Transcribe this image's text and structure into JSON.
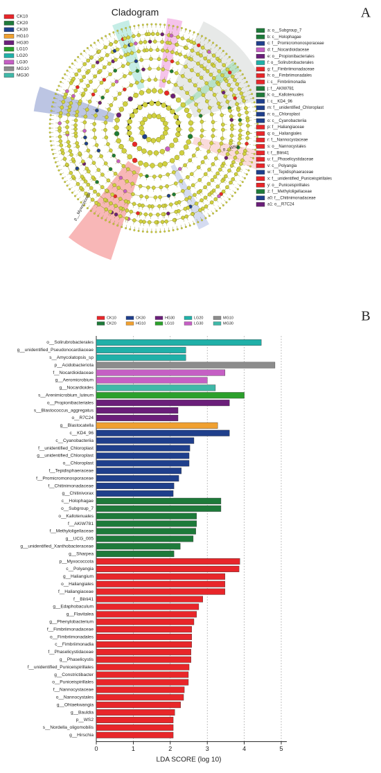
{
  "panel_labels": [
    "A",
    "B"
  ],
  "panel_a": {
    "title": "Cladogram",
    "legend_groups": [
      {
        "name": "CK10",
        "color": "#e8262a"
      },
      {
        "name": "CK20",
        "color": "#1e7a3a"
      },
      {
        "name": "CK30",
        "color": "#1f3f8c"
      },
      {
        "name": "HG10",
        "color": "#f0a030"
      },
      {
        "name": "HG30",
        "color": "#6b1f7a"
      },
      {
        "name": "LG10",
        "color": "#2ca02c"
      },
      {
        "name": "LG20",
        "color": "#20b0a8"
      },
      {
        "name": "LG30",
        "color": "#c55fc4"
      },
      {
        "name": "MG10",
        "color": "#8c8c8c"
      },
      {
        "name": "MG30",
        "color": "#3fb8a8"
      }
    ],
    "legend_taxa": [
      {
        "label": "a: o__Subgroup_7",
        "color": "#1e7a3a"
      },
      {
        "label": "b: c__Holophagae",
        "color": "#1e7a3a"
      },
      {
        "label": "c: f__Promicromonosporaceae",
        "color": "#1f3f8c"
      },
      {
        "label": "d: f__Nocardioidaceae",
        "color": "#c55fc4"
      },
      {
        "label": "e: o__Propionibacteriales",
        "color": "#6b1f7a"
      },
      {
        "label": "f: o__Solirubrobacterales",
        "color": "#20b0a8"
      },
      {
        "label": "g: f__Fimbriimonadaceae",
        "color": "#e8262a"
      },
      {
        "label": "h: o__Fimbriimonadales",
        "color": "#e8262a"
      },
      {
        "label": "i: c__Fimbriimonadia",
        "color": "#e8262a"
      },
      {
        "label": "j: f__AKIW781",
        "color": "#1e7a3a"
      },
      {
        "label": "k: o__Kallotenuales",
        "color": "#1e7a3a"
      },
      {
        "label": "l: c__KD4_96",
        "color": "#1f3f8c"
      },
      {
        "label": "m: f__unidentified_Chloroplast",
        "color": "#1f3f8c"
      },
      {
        "label": "n: o__Chloroplast",
        "color": "#1f3f8c"
      },
      {
        "label": "o: c__Cyanobacteriia",
        "color": "#1f3f8c"
      },
      {
        "label": "p: f__Haliangiaceae",
        "color": "#e8262a"
      },
      {
        "label": "q: o__Haliangiales",
        "color": "#e8262a"
      },
      {
        "label": "r: f__Nannocystaceae",
        "color": "#e8262a"
      },
      {
        "label": "s: o__Nannocystales",
        "color": "#e8262a"
      },
      {
        "label": "t: f__Bilrii41",
        "color": "#e8262a"
      },
      {
        "label": "u: f__Phaselicystidaceae",
        "color": "#e8262a"
      },
      {
        "label": "v: c__Polyangia",
        "color": "#e8262a"
      },
      {
        "label": "w: f__Tepidisphaeraceae",
        "color": "#1f3f8c"
      },
      {
        "label": "x: f__unidentified_Puniceispirillales",
        "color": "#e8262a"
      },
      {
        "label": "y: o__Puniceispirillales",
        "color": "#e8262a"
      },
      {
        "label": "z: f__Methyloligellaceae",
        "color": "#1e7a3a"
      },
      {
        "label": "a0: f__Chitinimonadaceae",
        "color": "#1f3f8c"
      },
      {
        "label": "a1: o__R7C24",
        "color": "#6b1f7a"
      }
    ],
    "clade_labels": [
      "p__WS2",
      "p__Myxococcota"
    ]
  },
  "chart_data": {
    "type": "bar",
    "orientation": "horizontal",
    "xlabel": "LDA SCORE (log 10)",
    "xlim": [
      0,
      5
    ],
    "xticks": [
      0,
      1,
      2,
      3,
      4,
      5
    ],
    "grid": true,
    "series": [
      {
        "name": "LG20",
        "color": "#20b0a8",
        "categories": [
          "o__Solirubrobacterales",
          "g__unidentified_Pseudonocardiaceae",
          "s__Amycolatopsis_sp"
        ],
        "values": [
          4.46,
          2.42,
          2.42
        ]
      },
      {
        "name": "MG10",
        "color": "#8c8c8c",
        "categories": [
          "p__Acidobacteriota"
        ],
        "values": [
          4.83
        ]
      },
      {
        "name": "LG30",
        "color": "#c55fc4",
        "categories": [
          "f__Nocardioidaceae",
          "g__Aeromicrobium"
        ],
        "values": [
          3.48,
          3.0
        ]
      },
      {
        "name": "MG30",
        "color": "#3fb8a8",
        "categories": [
          "g__Nocardioides"
        ],
        "values": [
          3.22
        ]
      },
      {
        "name": "LG10",
        "color": "#2ca02c",
        "categories": [
          "s__Arenimicrobium_luteum"
        ],
        "values": [
          4.0
        ]
      },
      {
        "name": "HG30",
        "color": "#6b1f7a",
        "categories": [
          "o__Propionibacteriales",
          "s__Blastococcus_aggregatus",
          "o__R7C24"
        ],
        "values": [
          3.6,
          2.21,
          2.21
        ]
      },
      {
        "name": "HG10",
        "color": "#f0a030",
        "categories": [
          "g__Blastocatella"
        ],
        "values": [
          3.28
        ]
      },
      {
        "name": "CK30",
        "color": "#1f3f8c",
        "categories": [
          "c__KD4_96",
          "c__Cyanobacteriia",
          "f__unidentified_Chloroplast",
          "g__unidentified_Chloroplast",
          "o__Chloroplast",
          "f__Tepidisphaeraceae",
          "f__Promicromonosporaceae",
          "f__Chitinimonadaceae",
          "g__Chitinivorax"
        ],
        "values": [
          3.6,
          2.64,
          2.53,
          2.51,
          2.51,
          2.3,
          2.23,
          2.1,
          2.08
        ]
      },
      {
        "name": "CK20",
        "color": "#1e7a3a",
        "categories": [
          "c__Holophagae",
          "o__Subgroup_7",
          "o__Kallotenuales",
          "f__AKIW781",
          "f__Methyloligellaceae",
          "g__UCG_005",
          "g__unidentified_Xanthobacteraceae",
          "g__Sharpea"
        ],
        "values": [
          3.37,
          3.37,
          2.71,
          2.71,
          2.69,
          2.62,
          2.27,
          2.1
        ]
      },
      {
        "name": "CK10",
        "color": "#e8262a",
        "categories": [
          "p__Myxococcota",
          "c__Polyangia",
          "g__Haliangium",
          "o__Haliangiales",
          "f__Haliangiaceae",
          "f__Bilrii41",
          "g__Edaphobaculum",
          "g__Flavitalea",
          "g__Phenylobacterium",
          "f__Fimbriimonadaceae",
          "o__Fimbriimonadales",
          "c__Fimbriimonadia",
          "f__Phaselicystidaceae",
          "g__Phaselicystis",
          "f__unidentified_Puniceispirillales",
          "g__Constrictibacter",
          "o__Puniceispirillales",
          "f__Nannocystaceae",
          "o__Nannocystales",
          "g__Ohtaekwangia",
          "g__Bauldia",
          "p__WS2",
          "s__Nordella_oligomobilis",
          "g__Hirschia"
        ],
        "values": [
          3.88,
          3.86,
          3.48,
          3.48,
          3.48,
          2.88,
          2.77,
          2.71,
          2.64,
          2.58,
          2.58,
          2.58,
          2.56,
          2.56,
          2.51,
          2.49,
          2.49,
          2.38,
          2.36,
          2.28,
          2.12,
          2.08,
          2.08,
          2.08
        ]
      }
    ]
  }
}
